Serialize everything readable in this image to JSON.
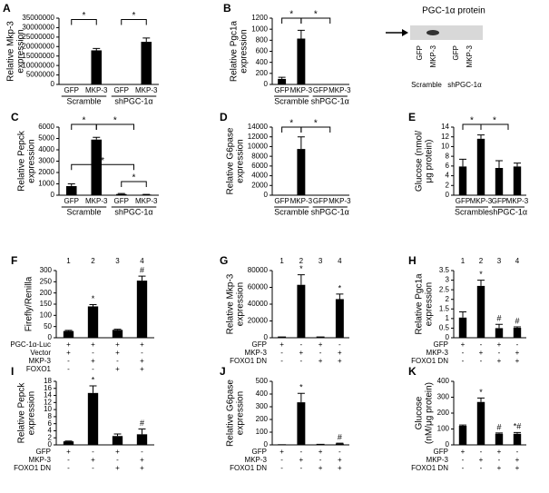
{
  "chart_data": [
    {
      "panel": "A",
      "type": "bar",
      "ylabel": [
        "Relative Mkp-3",
        "expression"
      ],
      "categories": [
        "GFP",
        "MKP-3",
        "GFP",
        "MKP-3"
      ],
      "groups": [
        "Scramble",
        "shPGC-1α"
      ],
      "values": [
        200000,
        18000000,
        200000,
        22500000
      ],
      "errors": [
        null,
        1000000,
        null,
        2000000
      ],
      "ylim": [
        0,
        35000000
      ],
      "yticks": [
        0,
        5000000,
        10000000,
        15000000,
        20000000,
        25000000,
        30000000,
        35000000
      ],
      "brackets": [
        "*",
        "*"
      ],
      "color": "#000000"
    },
    {
      "panel": "B",
      "type": "bar",
      "ylabel": [
        "Relative Pgc1a",
        "expression"
      ],
      "categories": [
        "GFP",
        "MKP-3",
        "GFP",
        "MKP-3"
      ],
      "groups": [
        "Scramble",
        "shPGC-1α"
      ],
      "values": [
        100,
        830,
        5,
        5
      ],
      "errors": [
        30,
        150,
        null,
        null
      ],
      "ylim": [
        0,
        1200
      ],
      "yticks": [
        0,
        200,
        400,
        600,
        800,
        1000,
        1200
      ],
      "brackets": [
        "*",
        "*"
      ],
      "color": "#000000"
    },
    {
      "panel": "C",
      "type": "bar",
      "ylabel": [
        "Relative Pepck",
        "expression"
      ],
      "categories": [
        "GFP",
        "MKP-3",
        "GFP",
        "MKP-3"
      ],
      "groups": [
        "Scramble",
        "shPGC-1α"
      ],
      "values": [
        800,
        4900,
        100,
        50
      ],
      "errors": [
        200,
        200,
        50,
        20
      ],
      "ylim": [
        0,
        6000
      ],
      "yticks": [
        0,
        1000,
        2000,
        3000,
        4000,
        5000,
        6000
      ],
      "brackets": [
        "*",
        "*",
        "*",
        "*"
      ],
      "color": "#000000"
    },
    {
      "panel": "D",
      "type": "bar",
      "ylabel": [
        "Relative G6pase",
        "expression"
      ],
      "categories": [
        "GFP",
        "MKP-3",
        "GFP",
        "MKP-3"
      ],
      "groups": [
        "Scramble",
        "shPGC-1α"
      ],
      "values": [
        100,
        9500,
        50,
        50
      ],
      "errors": [
        null,
        2500,
        null,
        null
      ],
      "ylim": [
        0,
        14000
      ],
      "yticks": [
        0,
        2000,
        4000,
        6000,
        8000,
        10000,
        12000,
        14000
      ],
      "brackets": [
        "*",
        "*"
      ],
      "color": "#000000"
    },
    {
      "panel": "E",
      "type": "bar",
      "ylabel": [
        "Glucose (nmol/",
        "μg protein)"
      ],
      "categories": [
        "GFP",
        "MKP-3",
        "GFP",
        "MKP-3"
      ],
      "groups": [
        "Scramble",
        "shPGC-1α"
      ],
      "values": [
        5.9,
        11.6,
        5.6,
        5.9
      ],
      "errors": [
        1.5,
        0.8,
        1.5,
        0.7
      ],
      "ylim": [
        0,
        14
      ],
      "yticks": [
        0,
        2,
        4,
        6,
        8,
        10,
        12,
        14
      ],
      "brackets": [
        "*",
        "*"
      ],
      "color": "#000000"
    },
    {
      "panel": "F",
      "type": "bar",
      "ylabel": [
        "Firefly/Renilla"
      ],
      "columns": [
        "1",
        "2",
        "3",
        "4"
      ],
      "values": [
        30,
        140,
        35,
        255
      ],
      "errors": [
        3,
        8,
        3,
        20
      ],
      "bar_labels": [
        null,
        "*",
        null,
        "#"
      ],
      "ylim": [
        0,
        300
      ],
      "yticks": [
        0,
        50,
        100,
        150,
        200,
        250,
        300
      ],
      "conditions": [
        {
          "label": "PGC-1α-Luc",
          "signs": [
            "+",
            "+",
            "+",
            "+"
          ]
        },
        {
          "label": "Vector",
          "signs": [
            "+",
            "-",
            "+",
            "-"
          ]
        },
        {
          "label": "MKP-3",
          "signs": [
            "-",
            "+",
            "-",
            "+"
          ]
        },
        {
          "label": "FOXO1",
          "signs": [
            "-",
            "-",
            "+",
            "+"
          ]
        }
      ],
      "color": "#000000"
    },
    {
      "panel": "G",
      "type": "bar",
      "ylabel": [
        "Relative Mkp-3",
        "expression"
      ],
      "columns": [
        "1",
        "2",
        "3",
        "4"
      ],
      "values": [
        1500,
        63000,
        1500,
        46000
      ],
      "errors": [
        null,
        12000,
        null,
        6000
      ],
      "bar_labels": [
        null,
        "*",
        null,
        "*"
      ],
      "ylim": [
        0,
        80000
      ],
      "yticks": [
        0,
        20000,
        40000,
        60000,
        80000
      ],
      "conditions": [
        {
          "label": "GFP",
          "signs": [
            "+",
            "-",
            "+",
            "-"
          ]
        },
        {
          "label": "MKP-3",
          "signs": [
            "-",
            "+",
            "-",
            "+"
          ]
        },
        {
          "label": "FOXO1 DN",
          "signs": [
            "-",
            "-",
            "+",
            "+"
          ]
        }
      ],
      "color": "#000000"
    },
    {
      "panel": "H",
      "type": "bar",
      "ylabel": [
        "Relative Pgc1a",
        "expression"
      ],
      "columns": [
        "1",
        "2",
        "3",
        "4"
      ],
      "values": [
        1.05,
        2.7,
        0.5,
        0.52
      ],
      "errors": [
        0.3,
        0.3,
        0.2,
        0.05
      ],
      "bar_labels": [
        null,
        "*",
        "#",
        "#"
      ],
      "ylim": [
        0,
        3.5
      ],
      "yticks": [
        0,
        0.5,
        1,
        1.5,
        2,
        2.5,
        3,
        3.5
      ],
      "conditions": [
        {
          "label": "GFP",
          "signs": [
            "+",
            "-",
            "+",
            "-"
          ]
        },
        {
          "label": "MKP-3",
          "signs": [
            "-",
            "+",
            "-",
            "+"
          ]
        },
        {
          "label": "FOXO1 DN",
          "signs": [
            "-",
            "-",
            "+",
            "+"
          ]
        }
      ],
      "color": "#000000"
    },
    {
      "panel": "I",
      "type": "bar",
      "ylabel": [
        "Relative Pepck",
        "expression"
      ],
      "values": [
        1,
        14.7,
        2.5,
        3
      ],
      "errors": [
        0.1,
        2,
        0.6,
        1.5
      ],
      "bar_labels": [
        null,
        "*",
        null,
        "#"
      ],
      "ylim": [
        0,
        18
      ],
      "yticks": [
        0,
        2,
        4,
        6,
        8,
        10,
        12,
        14,
        16,
        18
      ],
      "conditions": [
        {
          "label": "GFP",
          "signs": [
            "+",
            "-",
            "+",
            "-"
          ]
        },
        {
          "label": "MKP-3",
          "signs": [
            "-",
            "+",
            "-",
            "+"
          ]
        },
        {
          "label": "FOXO1 DN",
          "signs": [
            "-",
            "-",
            "+",
            "+"
          ]
        }
      ],
      "color": "#000000"
    },
    {
      "panel": "J",
      "type": "bar",
      "ylabel": [
        "Relative G6pase",
        "expression"
      ],
      "values": [
        5,
        335,
        8,
        10
      ],
      "errors": [
        null,
        70,
        null,
        3
      ],
      "bar_labels": [
        null,
        "*",
        null,
        "#"
      ],
      "ylim": [
        0,
        500
      ],
      "yticks": [
        0,
        100,
        200,
        300,
        400,
        500
      ],
      "conditions": [
        {
          "label": "GFP",
          "signs": [
            "+",
            "-",
            "+",
            "-"
          ]
        },
        {
          "label": "MKP-3",
          "signs": [
            "-",
            "+",
            "-",
            "+"
          ]
        },
        {
          "label": "FOXO1 DN",
          "signs": [
            "-",
            "-",
            "+",
            "+"
          ]
        }
      ],
      "color": "#000000"
    },
    {
      "panel": "K",
      "type": "bar",
      "ylabel": [
        "Glucose",
        "(nM/μg protein)"
      ],
      "values": [
        120,
        270,
        70,
        70
      ],
      "errors": [
        5,
        25,
        5,
        8
      ],
      "bar_labels": [
        null,
        "*",
        "#",
        "*#"
      ],
      "ylim": [
        0,
        400
      ],
      "yticks": [
        0,
        100,
        200,
        300,
        400
      ],
      "conditions": [
        {
          "label": "GFP",
          "signs": [
            "+",
            "-",
            "+",
            "-"
          ]
        },
        {
          "label": "MKP-3",
          "signs": [
            "-",
            "+",
            "-",
            "+"
          ]
        },
        {
          "label": "FOXO1 DN",
          "signs": [
            "-",
            "-",
            "+",
            "+"
          ]
        }
      ],
      "color": "#000000"
    }
  ],
  "blot": {
    "title": "PGC-1α protein",
    "lanes": [
      "GFP",
      "MKP-3",
      "GFP",
      "MKP-3"
    ],
    "groups": [
      "Scramble",
      "shPGC-1α"
    ]
  }
}
